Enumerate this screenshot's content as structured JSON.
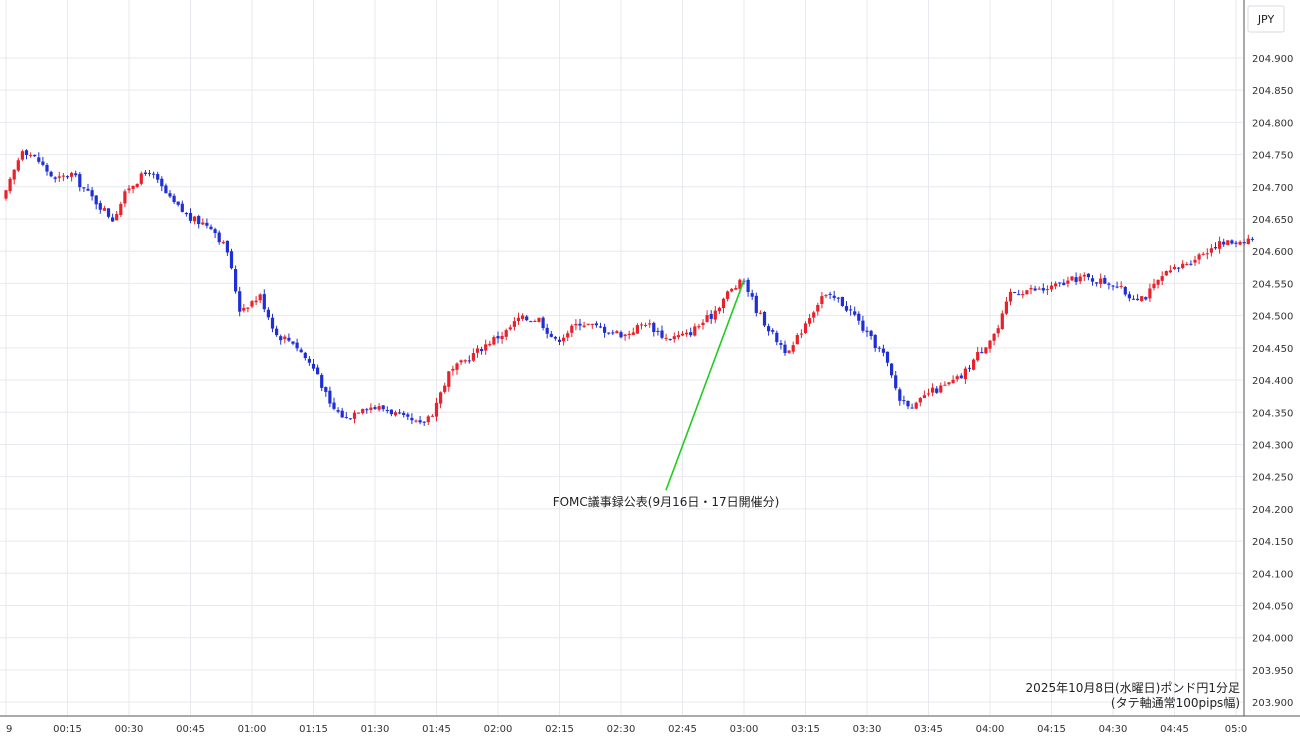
{
  "chart_data": {
    "type": "candlestick",
    "currency": "JPY",
    "title_lines": [
      "2025年10月8日(水曜日)ポンド円1分足",
      "(タテ軸通常100pips幅)"
    ],
    "annotation": {
      "text": "FOMC議事録公表(9月16日・17日開催分)",
      "x_time": "03:00",
      "price": 204.555
    },
    "ylim": [
      203.88,
      204.99
    ],
    "yticks": [
      "204.900",
      "204.850",
      "204.800",
      "204.750",
      "204.700",
      "204.650",
      "204.600",
      "204.550",
      "204.500",
      "204.450",
      "204.400",
      "204.350",
      "204.300",
      "204.250",
      "204.200",
      "204.150",
      "204.100",
      "204.050",
      "204.000",
      "203.950",
      "203.900"
    ],
    "xticks": [
      "9",
      "00:15",
      "00:30",
      "00:45",
      "01:00",
      "01:15",
      "01:30",
      "01:45",
      "02:00",
      "02:15",
      "02:30",
      "02:45",
      "03:00",
      "03:15",
      "03:30",
      "03:45",
      "04:00",
      "04:15",
      "04:30",
      "04:45",
      "05:0"
    ],
    "grid": true,
    "colors": {
      "up": "#e8212a",
      "down": "#1f2fd6",
      "grid": "#e6e9ee",
      "annotation_line": "#22cc22",
      "axis": "#555555"
    },
    "close_path": [
      [
        0,
        204.69
      ],
      [
        4,
        204.76
      ],
      [
        8,
        204.74
      ],
      [
        12,
        204.71
      ],
      [
        16,
        204.72
      ],
      [
        20,
        204.69
      ],
      [
        26,
        204.65
      ],
      [
        30,
        204.7
      ],
      [
        35,
        204.725
      ],
      [
        40,
        204.68
      ],
      [
        45,
        204.65
      ],
      [
        50,
        204.64
      ],
      [
        54,
        204.6
      ],
      [
        57,
        204.51
      ],
      [
        62,
        204.53
      ],
      [
        66,
        204.47
      ],
      [
        70,
        204.46
      ],
      [
        76,
        204.41
      ],
      [
        79,
        204.36
      ],
      [
        83,
        204.34
      ],
      [
        87,
        204.36
      ],
      [
        93,
        204.355
      ],
      [
        97,
        204.34
      ],
      [
        101,
        204.33
      ],
      [
        104,
        204.35
      ],
      [
        108,
        204.41
      ],
      [
        113,
        204.435
      ],
      [
        118,
        204.46
      ],
      [
        122,
        204.475
      ],
      [
        125,
        204.495
      ],
      [
        130,
        204.495
      ],
      [
        134,
        204.46
      ],
      [
        140,
        204.49
      ],
      [
        145,
        204.48
      ],
      [
        151,
        204.47
      ],
      [
        156,
        204.49
      ],
      [
        161,
        204.465
      ],
      [
        166,
        204.47
      ],
      [
        172,
        204.5
      ],
      [
        176,
        204.535
      ],
      [
        180,
        204.555
      ],
      [
        183,
        204.51
      ],
      [
        187,
        204.47
      ],
      [
        191,
        204.44
      ],
      [
        195,
        204.49
      ],
      [
        199,
        204.53
      ],
      [
        203,
        204.525
      ],
      [
        207,
        204.5
      ],
      [
        210,
        204.47
      ],
      [
        214,
        204.44
      ],
      [
        218,
        204.37
      ],
      [
        222,
        204.36
      ],
      [
        225,
        204.38
      ],
      [
        229,
        204.39
      ],
      [
        233,
        204.405
      ],
      [
        237,
        204.44
      ],
      [
        242,
        204.48
      ],
      [
        245,
        204.535
      ],
      [
        249,
        204.54
      ],
      [
        253,
        204.54
      ],
      [
        258,
        204.55
      ],
      [
        262,
        204.56
      ],
      [
        266,
        204.555
      ],
      [
        270,
        204.55
      ],
      [
        274,
        204.53
      ],
      [
        278,
        204.53
      ],
      [
        282,
        204.56
      ],
      [
        286,
        204.575
      ],
      [
        290,
        204.59
      ],
      [
        295,
        204.61
      ],
      [
        300,
        204.615
      ],
      [
        304,
        204.62
      ]
    ]
  }
}
